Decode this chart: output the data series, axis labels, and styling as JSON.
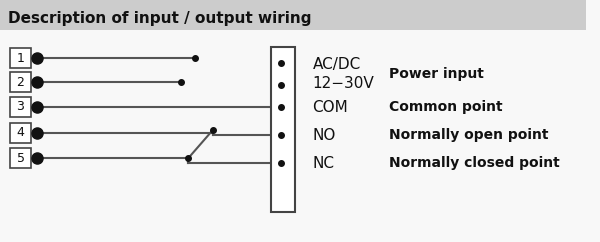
{
  "title": "Description of input / output wiring",
  "title_bg": "#cccccc",
  "body_bg": "#f8f8f8",
  "line_color": "#555555",
  "dot_color": "#111111",
  "box_edge_color": "#444444",
  "text_color": "#111111",
  "title_fontsize": 11,
  "body_fontsize": 10,
  "desc_fontsize": 10,
  "terminal_labels": [
    "1",
    "2",
    "3",
    "4",
    "5"
  ],
  "connector_labels_line1": [
    "AC/DC",
    "12-30V"
  ],
  "connector_labels": [
    "COM",
    "NO",
    "NC"
  ],
  "label_power": "AC/DC\n12−30V",
  "descriptions": [
    "Power input",
    "Common point",
    "Normally open point",
    "Normally closed point"
  ]
}
